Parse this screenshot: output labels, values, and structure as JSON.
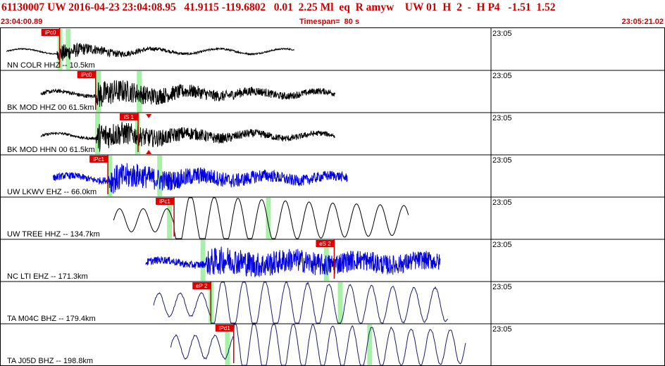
{
  "header": {
    "title": "61130007 UW 2016-04-23 23:04:08.95   41.9115 -119.6802   0.01  2.25 Ml  eq  R amyw    UW 01  H  2  -  H P4   -1.51  1.52",
    "start_time": "23:04:00.89",
    "timespan": "Timespan=  80 s",
    "end_time": "23:05:21.02"
  },
  "minute_label": "23:05",
  "colors": {
    "pick_flag": "#e00000",
    "pick_line": "#c00000",
    "window": "#a8f0a8",
    "trace_black": "#000000",
    "trace_blue": "#0000e0",
    "trace_navy": "#1a1a6e"
  },
  "traces": [
    {
      "label": "NN COLR HHZ -- 10.5km",
      "color": "black",
      "start": 0.8,
      "end": 36.0,
      "onset": 7.0,
      "amp": 0.45,
      "noise": 0.03,
      "period": 0.35,
      "decay": 6,
      "picks": [
        {
          "label": "iPc0",
          "t": 7.3
        }
      ],
      "windows": [
        7.3,
        8.3
      ]
    },
    {
      "label": "BK MOD HHZ 00 61.5km",
      "color": "black",
      "start": 5.0,
      "end": 41.0,
      "onset": 11.7,
      "amp": 0.6,
      "noise": 0.09,
      "period": 0.3,
      "decay": 12,
      "picks": [
        {
          "label": "iPc0",
          "t": 11.7
        }
      ],
      "windows": [
        12.0,
        17.0
      ]
    },
    {
      "label": "BK MOD HHN 00 61.5km",
      "color": "black",
      "start": 5.0,
      "end": 41.0,
      "onset": 11.7,
      "amp": 0.65,
      "noise": 0.06,
      "period": 0.3,
      "decay": 12,
      "picks": [
        {
          "label": "iS 1",
          "t": 16.9
        }
      ],
      "windows": [
        11.9,
        16.8
      ],
      "triangle": 18.2
    },
    {
      "label": "UW LKWV EHZ -- 66.0km",
      "color": "blue",
      "start": 6.5,
      "end": 42.5,
      "onset": 13.2,
      "amp": 0.55,
      "noise": 0.16,
      "period": 0.12,
      "decay": 14,
      "picks": [
        {
          "label": "iPc1",
          "t": 13.2
        }
      ],
      "windows": [
        13.4,
        19.5
      ]
    },
    {
      "label": "UW TREE HHZ -- 134.7km",
      "color": "black",
      "start": 13.9,
      "end": 50.0,
      "onset": 21.3,
      "amp": 0.45,
      "noise": 0.0,
      "period": 2.9,
      "decay": 30,
      "picks": [
        {
          "label": "iPc1",
          "t": 21.3
        }
      ],
      "windows": [
        20.7,
        32.8
      ]
    },
    {
      "label": "NC LTI EHZ -- 171.3km",
      "color": "blue",
      "start": 17.8,
      "end": 53.9,
      "onset": 25.2,
      "amp": 0.5,
      "noise": 0.18,
      "period": 0.14,
      "decay": 40,
      "picks": [
        {
          "label": "eS 2",
          "t": 40.9
        }
      ],
      "windows": [
        24.8,
        39.9
      ]
    },
    {
      "label": "TA M04C BHZ -- 179.4km",
      "color": "navy",
      "start": 18.8,
      "end": 54.8,
      "onset": 25.8,
      "amp": 0.6,
      "noise": 0.04,
      "period": 2.6,
      "decay": 40,
      "picks": [
        {
          "label": "eP 2",
          "t": 25.8
        }
      ],
      "windows": [
        25.8,
        41.6
      ]
    },
    {
      "label": "TA J05D BHZ -- 198.8km",
      "color": "navy",
      "start": 20.9,
      "end": 57.0,
      "onset": 28.6,
      "amp": 0.45,
      "noise": 0.04,
      "period": 2.4,
      "decay": 40,
      "picks": [
        {
          "label": "iPd1",
          "t": 28.6
        }
      ],
      "windows": [
        27.8,
        45.2
      ]
    }
  ]
}
